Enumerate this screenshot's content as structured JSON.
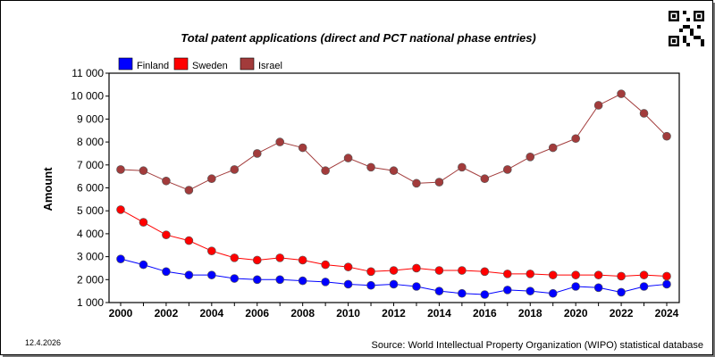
{
  "footer": {
    "date": "12.4.2026",
    "source": "Source: World Intellectual Property Organization (WIPO) statistical database"
  },
  "chart_data": {
    "type": "line",
    "title": "Total patent applications (direct and PCT national phase entries)",
    "xlabel": "",
    "ylabel": "Amount",
    "xlim": [
      2000,
      2024
    ],
    "ylim": [
      1000,
      11000
    ],
    "grid": false,
    "legend": "top-left",
    "x_ticks": [
      "2000",
      "2002",
      "2004",
      "2006",
      "2008",
      "2010",
      "2012",
      "2014",
      "2016",
      "2018",
      "2020",
      "2022",
      "2024"
    ],
    "y_ticks": [
      "1 000",
      "2 000",
      "3 000",
      "4 000",
      "5 000",
      "6 000",
      "7 000",
      "8 000",
      "9 000",
      "10 000",
      "11 000"
    ],
    "x": [
      2000,
      2001,
      2002,
      2003,
      2004,
      2005,
      2006,
      2007,
      2008,
      2009,
      2010,
      2011,
      2012,
      2013,
      2014,
      2015,
      2016,
      2017,
      2018,
      2019,
      2020,
      2021,
      2022,
      2023,
      2024
    ],
    "series": [
      {
        "name": "Finland",
        "color": "#0000ff",
        "values": [
          2900,
          2650,
          2350,
          2200,
          2200,
          2050,
          2000,
          2000,
          1950,
          1900,
          1800,
          1750,
          1800,
          1700,
          1500,
          1400,
          1350,
          1550,
          1500,
          1400,
          1700,
          1650,
          1450,
          1700,
          1800
        ]
      },
      {
        "name": "Sweden",
        "color": "#ff0000",
        "values": [
          5050,
          4500,
          3950,
          3700,
          3250,
          2950,
          2850,
          2950,
          2850,
          2650,
          2550,
          2350,
          2400,
          2500,
          2400,
          2400,
          2350,
          2250,
          2250,
          2200,
          2200,
          2200,
          2150,
          2200,
          2150
        ]
      },
      {
        "name": "Israel",
        "color": "#a23b3b",
        "values": [
          6800,
          6750,
          6300,
          5900,
          6400,
          6800,
          7500,
          8000,
          7750,
          6750,
          7300,
          6900,
          6750,
          6200,
          6250,
          6900,
          6400,
          6800,
          7350,
          7750,
          8150,
          9600,
          10100,
          9250,
          8250
        ]
      }
    ]
  }
}
